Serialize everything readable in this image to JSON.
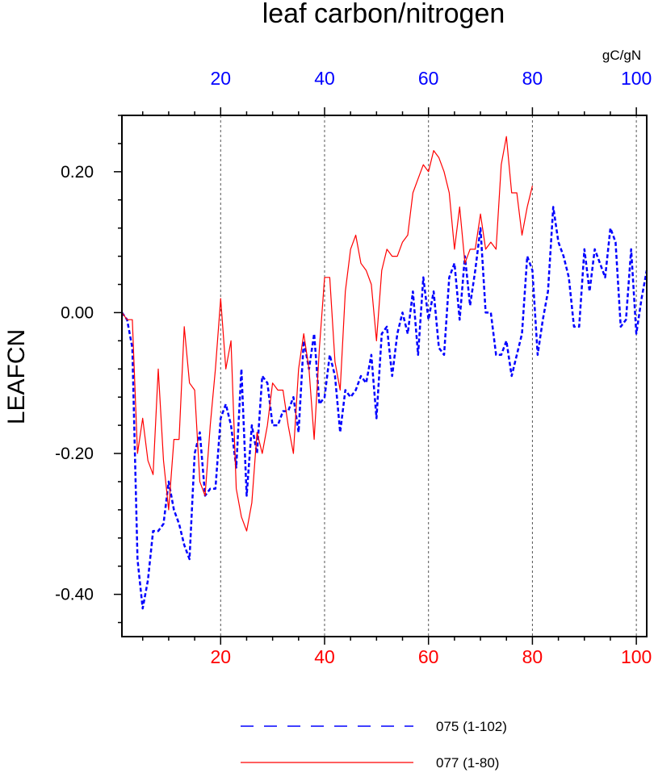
{
  "chart_data": {
    "type": "line",
    "title": "leaf carbon/nitrogen",
    "ylabel": "LEAFCN",
    "units": "gC/gN",
    "xlim": [
      1,
      102
    ],
    "ylim": [
      -0.46,
      0.28
    ],
    "yticks": [
      -0.4,
      -0.2,
      0.0,
      0.2
    ],
    "ytick_labels": [
      "-0.40",
      "-0.20",
      "0.00",
      "0.20"
    ],
    "xticks_bottom": [
      20,
      40,
      60,
      80,
      100
    ],
    "xtick_labels_bottom": [
      "20",
      "40",
      "60",
      "80",
      "100"
    ],
    "xticks_top": [
      20,
      40,
      60,
      80,
      100
    ],
    "xtick_labels_top": [
      "20",
      "40",
      "60",
      "80",
      "100"
    ],
    "grid_x": [
      20,
      40,
      60,
      80,
      100
    ],
    "legend_position": "bottom",
    "series": [
      {
        "name": "075 (1-102)",
        "color": "#0000ff",
        "style": "dashed",
        "x": [
          1,
          2,
          3,
          4,
          5,
          6,
          7,
          8,
          9,
          10,
          11,
          12,
          13,
          14,
          15,
          16,
          17,
          18,
          19,
          20,
          21,
          22,
          23,
          24,
          25,
          26,
          27,
          28,
          29,
          30,
          31,
          32,
          33,
          34,
          35,
          36,
          37,
          38,
          39,
          40,
          41,
          42,
          43,
          44,
          45,
          46,
          47,
          48,
          49,
          50,
          51,
          52,
          53,
          54,
          55,
          56,
          57,
          58,
          59,
          60,
          61,
          62,
          63,
          64,
          65,
          66,
          67,
          68,
          69,
          70,
          71,
          72,
          73,
          74,
          75,
          76,
          77,
          78,
          79,
          80,
          81,
          82,
          83,
          84,
          85,
          86,
          87,
          88,
          89,
          90,
          91,
          92,
          93,
          94,
          95,
          96,
          97,
          98,
          99,
          100,
          101,
          102
        ],
        "y": [
          0.0,
          -0.01,
          -0.05,
          -0.35,
          -0.42,
          -0.38,
          -0.31,
          -0.31,
          -0.3,
          -0.24,
          -0.28,
          -0.3,
          -0.33,
          -0.35,
          -0.2,
          -0.17,
          -0.26,
          -0.25,
          -0.25,
          -0.15,
          -0.13,
          -0.16,
          -0.22,
          -0.08,
          -0.26,
          -0.16,
          -0.2,
          -0.09,
          -0.1,
          -0.16,
          -0.16,
          -0.14,
          -0.14,
          -0.12,
          -0.17,
          -0.04,
          -0.08,
          -0.03,
          -0.13,
          -0.12,
          -0.06,
          -0.09,
          -0.17,
          -0.11,
          -0.12,
          -0.11,
          -0.09,
          -0.1,
          -0.06,
          -0.15,
          -0.03,
          -0.02,
          -0.09,
          -0.03,
          0.0,
          -0.03,
          0.03,
          -0.06,
          0.05,
          -0.01,
          0.03,
          -0.05,
          -0.06,
          0.05,
          0.07,
          -0.01,
          0.08,
          0.01,
          0.06,
          0.12,
          0.0,
          0.0,
          -0.06,
          -0.06,
          -0.04,
          -0.09,
          -0.06,
          -0.03,
          0.08,
          0.06,
          -0.06,
          -0.01,
          0.03,
          0.15,
          0.1,
          0.08,
          0.05,
          -0.02,
          -0.02,
          0.09,
          0.03,
          0.09,
          0.07,
          0.05,
          0.12,
          0.1,
          -0.02,
          -0.01,
          0.09,
          -0.03,
          0.02,
          0.06
        ]
      },
      {
        "name": "077 (1-80)",
        "color": "#ff0000",
        "style": "solid",
        "x": [
          1,
          2,
          3,
          4,
          5,
          6,
          7,
          8,
          9,
          10,
          11,
          12,
          13,
          14,
          15,
          16,
          17,
          18,
          19,
          20,
          21,
          22,
          23,
          24,
          25,
          26,
          27,
          28,
          29,
          30,
          31,
          32,
          33,
          34,
          35,
          36,
          37,
          38,
          39,
          40,
          41,
          42,
          43,
          44,
          45,
          46,
          47,
          48,
          49,
          50,
          51,
          52,
          53,
          54,
          55,
          56,
          57,
          58,
          59,
          60,
          61,
          62,
          63,
          64,
          65,
          66,
          67,
          68,
          69,
          70,
          71,
          72,
          73,
          74,
          75,
          76,
          77,
          78,
          79,
          80
        ],
        "y": [
          0.0,
          -0.01,
          -0.01,
          -0.2,
          -0.15,
          -0.21,
          -0.23,
          -0.08,
          -0.21,
          -0.28,
          -0.18,
          -0.18,
          -0.02,
          -0.1,
          -0.11,
          -0.24,
          -0.26,
          -0.16,
          -0.08,
          0.02,
          -0.08,
          -0.04,
          -0.25,
          -0.29,
          -0.31,
          -0.27,
          -0.17,
          -0.2,
          -0.16,
          -0.1,
          -0.11,
          -0.11,
          -0.16,
          -0.2,
          -0.08,
          -0.03,
          -0.08,
          -0.18,
          -0.05,
          0.05,
          0.05,
          -0.07,
          -0.11,
          0.03,
          0.09,
          0.11,
          0.07,
          0.06,
          0.04,
          -0.04,
          0.06,
          0.09,
          0.08,
          0.08,
          0.1,
          0.11,
          0.17,
          0.19,
          0.21,
          0.2,
          0.23,
          0.22,
          0.2,
          0.17,
          0.09,
          0.15,
          0.07,
          0.09,
          0.09,
          0.14,
          0.09,
          0.1,
          0.09,
          0.21,
          0.25,
          0.17,
          0.17,
          0.11,
          0.15,
          0.18
        ]
      }
    ]
  }
}
